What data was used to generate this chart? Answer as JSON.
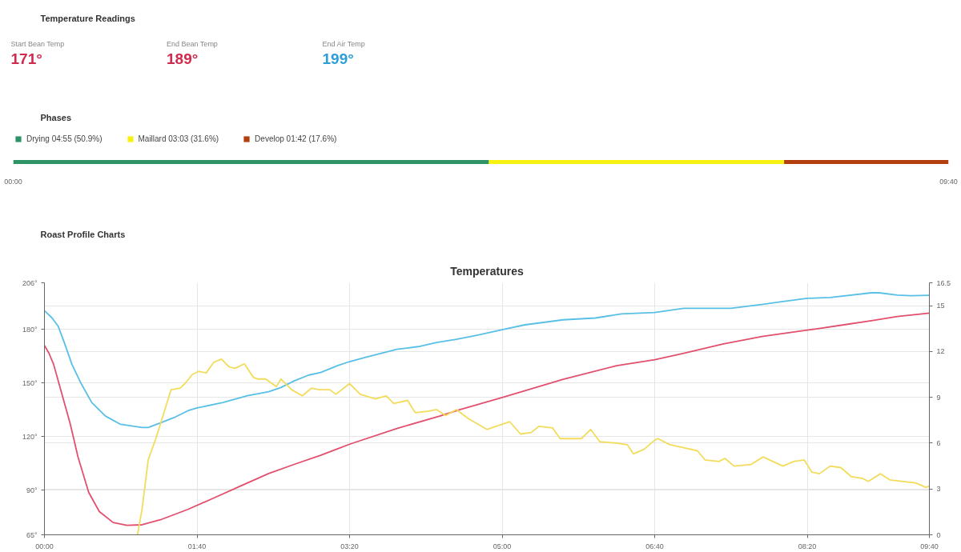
{
  "chart_data": [
    {
      "type": "other",
      "title": "Temperature Readings",
      "annotations": [
        "Start Bean Temp",
        "171°",
        "End Bean Temp",
        "189°",
        "End Air Temp",
        "199°"
      ]
    },
    {
      "type": "bar",
      "title": "Phases",
      "orientation": "horizontal",
      "stacked": true,
      "categories": [
        null
      ],
      "series": [
        {
          "name": "Drying 04:55 (50.9%)",
          "color": "#2e9468",
          "values": [
            295
          ]
        },
        {
          "name": "Maillard 03:03 (31.6%)",
          "color": "#f7f20f",
          "values": [
            183
          ]
        },
        {
          "name": "Develop 01:42 (17.6%)",
          "color": "#b2400e",
          "values": [
            102
          ]
        }
      ],
      "xlim": [
        0,
        580
      ],
      "xticks": [
        {
          "value": 0,
          "label": "00:00"
        },
        {
          "value": 580,
          "label": "09:40"
        }
      ],
      "tick_labels": "x",
      "legend": "top left"
    },
    {
      "type": "line",
      "title": "Temperatures",
      "annotations": [
        "Roast Profile Charts"
      ],
      "grid": true,
      "xlim": [
        0,
        580
      ],
      "xticks": [
        {
          "value": 0,
          "label": "00:00"
        },
        {
          "value": 100,
          "label": "01:40"
        },
        {
          "value": 200,
          "label": "03:20"
        },
        {
          "value": 300,
          "label": "05:00"
        },
        {
          "value": 400,
          "label": "06:40"
        },
        {
          "value": 500,
          "label": "08:20"
        },
        {
          "value": 580,
          "label": "09:40"
        }
      ],
      "ylim": [
        65,
        206
      ],
      "yticks": [
        {
          "value": 65,
          "label": "65°"
        },
        {
          "value": 90,
          "label": "90°"
        },
        {
          "value": 120,
          "label": "120°"
        },
        {
          "value": 150,
          "label": "150°"
        },
        {
          "value": 180,
          "label": "180°"
        },
        {
          "value": 206,
          "label": "206°"
        }
      ],
      "y2lim": [
        0,
        16.5
      ],
      "y2ticks": [
        0,
        3,
        6,
        9,
        12,
        15,
        16.5
      ],
      "series": [
        {
          "color": "#58bfe6",
          "x": [
            0,
            5,
            9,
            13,
            18,
            24,
            31,
            40,
            50,
            64,
            68,
            76,
            85,
            94,
            100,
            117,
            133,
            147,
            155,
            164,
            173,
            181,
            192,
            200,
            210,
            231,
            245,
            257,
            270,
            284,
            300,
            315,
            340,
            361,
            378,
            400,
            419,
            450,
            471,
            484,
            500,
            515,
            542,
            547,
            559,
            568,
            580
          ],
          "values": [
            190.4,
            186.3,
            181.7,
            172.6,
            160.4,
            149.7,
            139,
            131.4,
            126.8,
            125,
            125,
            127.6,
            130.6,
            134.4,
            136,
            139,
            142.8,
            145.1,
            147.4,
            151.2,
            154.3,
            155.8,
            159.6,
            161.9,
            164.2,
            168.8,
            170.3,
            172.6,
            174.4,
            176.7,
            179.8,
            182.5,
            185.3,
            186.3,
            188.6,
            189.4,
            191.7,
            191.7,
            194,
            195.5,
            197.3,
            197.8,
            200.4,
            200.4,
            199.1,
            198.8,
            199
          ]
        },
        {
          "color": "#e2506e",
          "x": [
            0,
            3,
            6,
            11,
            17,
            22,
            29,
            36,
            45,
            54,
            64,
            76,
            94,
            111,
            129,
            147,
            164,
            181,
            192,
            200,
            231,
            259,
            273,
            300,
            340,
            375,
            400,
            419,
            445,
            471,
            500,
            524,
            542,
            559,
            580
          ],
          "values": [
            171,
            166.5,
            160.4,
            145.1,
            126.8,
            108.5,
            88.7,
            78,
            71.9,
            70.3,
            70.6,
            73.4,
            79.2,
            85.6,
            92.5,
            99.3,
            104.5,
            109.5,
            113.1,
            115.7,
            124.5,
            131.4,
            135.2,
            141.8,
            152,
            159.6,
            163,
            166.5,
            171.8,
            176.1,
            179.5,
            182.5,
            184.8,
            187.1,
            189
          ]
        },
        {
          "color": "#f3dc5c",
          "axis": "y2",
          "x": [
            61,
            64,
            68,
            73,
            78,
            83,
            89,
            92,
            97,
            101,
            106,
            111,
            116,
            121,
            125,
            131,
            137,
            140,
            145,
            152,
            155,
            162,
            169,
            175,
            180,
            187,
            191,
            200,
            207,
            217,
            224,
            229,
            238,
            243,
            252,
            257,
            263,
            270,
            278,
            290,
            296,
            305,
            312,
            319,
            324,
            333,
            338,
            352,
            358,
            364,
            375,
            382,
            386,
            393,
            400,
            402,
            410,
            419,
            428,
            433,
            442,
            446,
            452,
            463,
            471,
            484,
            491,
            498,
            503,
            508,
            515,
            522,
            529,
            536,
            540,
            548,
            554,
            571,
            578,
            580
          ],
          "values": [
            0,
            1.7,
            4.9,
            6.3,
            7.9,
            9.5,
            9.6,
            9.9,
            10.5,
            10.7,
            10.6,
            11.3,
            11.5,
            11,
            10.9,
            11.2,
            10.3,
            10.2,
            10.2,
            9.7,
            10.2,
            9.5,
            9.1,
            9.6,
            9.5,
            9.5,
            9.2,
            9.9,
            9.2,
            8.9,
            9.1,
            8.6,
            8.8,
            8,
            8.1,
            8.2,
            7.8,
            8.2,
            7.6,
            6.9,
            7.1,
            7.4,
            6.6,
            6.7,
            7.1,
            7,
            6.3,
            6.3,
            6.9,
            6.1,
            6,
            5.9,
            5.3,
            5.6,
            6.2,
            6.3,
            5.9,
            5.7,
            5.5,
            4.9,
            4.8,
            5,
            4.5,
            4.6,
            5.1,
            4.5,
            4.8,
            4.9,
            4.1,
            4,
            4.5,
            4.4,
            3.8,
            3.7,
            3.5,
            4,
            3.6,
            3.4,
            3.1,
            3.2
          ]
        }
      ]
    }
  ]
}
